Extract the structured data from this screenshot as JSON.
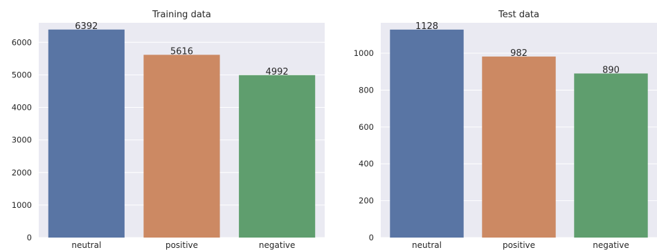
{
  "chart_data": [
    {
      "type": "bar",
      "title": "Training data",
      "xlabel": "",
      "ylabel": "",
      "categories": [
        "neutral",
        "positive",
        "negative"
      ],
      "values": [
        6392,
        5616,
        4992
      ],
      "data_labels": [
        "6392",
        "5616",
        "4992"
      ],
      "colors": [
        "#5975a4",
        "#cc8963",
        "#5f9e6e"
      ],
      "ylim": [
        0,
        6600
      ],
      "yticks": [
        0,
        1000,
        2000,
        3000,
        4000,
        5000,
        6000
      ],
      "ytick_labels": [
        "0",
        "1000",
        "2000",
        "3000",
        "4000",
        "5000",
        "6000"
      ],
      "grid": true,
      "background": "#eaeaf2"
    },
    {
      "type": "bar",
      "title": "Test data",
      "xlabel": "",
      "ylabel": "",
      "categories": [
        "neutral",
        "positive",
        "negative"
      ],
      "values": [
        1128,
        982,
        890
      ],
      "data_labels": [
        "1128",
        "982",
        "890"
      ],
      "colors": [
        "#5975a4",
        "#cc8963",
        "#5f9e6e"
      ],
      "ylim": [
        0,
        1165
      ],
      "yticks": [
        0,
        200,
        400,
        600,
        800,
        1000
      ],
      "ytick_labels": [
        "0",
        "200",
        "400",
        "600",
        "800",
        "1000"
      ],
      "grid": true,
      "background": "#eaeaf2"
    }
  ]
}
